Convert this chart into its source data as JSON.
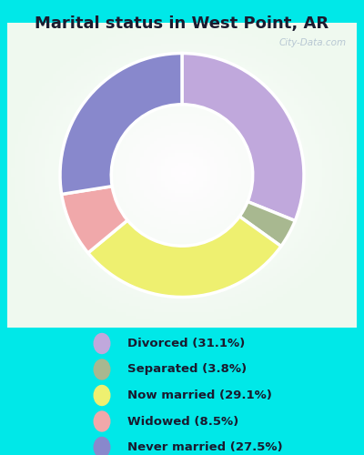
{
  "title": "Marital status in West Point, AR",
  "categories": [
    "Divorced",
    "Separated",
    "Now married",
    "Widowed",
    "Never married"
  ],
  "values": [
    31.1,
    3.8,
    29.1,
    8.5,
    27.5
  ],
  "colors": [
    "#b8a8e0",
    "#a8b890",
    "#f0f070",
    "#f0a0a8",
    "#8888cc"
  ],
  "legend_colors": [
    "#c0a8d8",
    "#a8b890",
    "#f0f070",
    "#f0a0a8",
    "#9090cc"
  ],
  "legend_labels": [
    "Divorced (31.1%)",
    "Separated (3.8%)",
    "Now married (29.1%)",
    "Widowed (8.5%)",
    "Never married (27.5%)"
  ],
  "background_outer": "#00e8e8",
  "title_fontsize": 13,
  "donut_width": 0.42,
  "figsize": [
    4.0,
    5.0
  ],
  "dpi": 100,
  "startangle": 90
}
